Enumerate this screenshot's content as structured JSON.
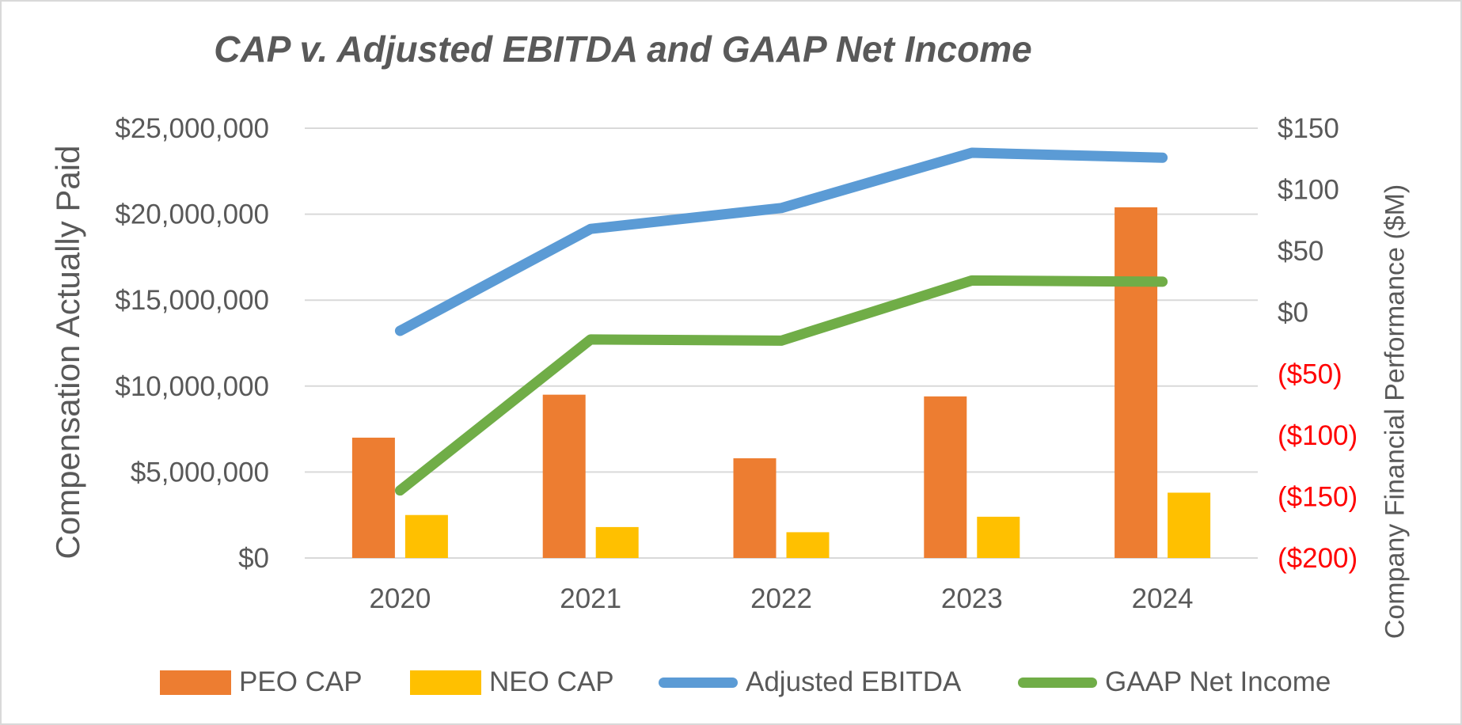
{
  "title": "CAP v. Adjusted EBITDA and GAAP Net Income",
  "left_axis": {
    "title": "Compensation Actually Paid",
    "tick_labels": [
      "$25,000,000",
      "$20,000,000",
      "$15,000,000",
      "$10,000,000",
      "$5,000,000",
      "$0"
    ],
    "tick_values": [
      25000000,
      20000000,
      15000000,
      10000000,
      5000000,
      0
    ],
    "min": 0,
    "max": 25000000,
    "label_color": "#595959"
  },
  "right_axis": {
    "title": "Company Financial Performance ($M)",
    "tick_labels": [
      "$150",
      "$100",
      "$50",
      "$0",
      "($50)",
      "($100)",
      "($150)",
      "($200)"
    ],
    "tick_values": [
      150,
      100,
      50,
      0,
      -50,
      -100,
      -150,
      -200
    ],
    "min": -200,
    "max": 150,
    "label_color": "#595959",
    "negative_label_color": "#ff0000"
  },
  "x_axis": {
    "categories": [
      "2020",
      "2021",
      "2022",
      "2023",
      "2024"
    ],
    "label_color": "#595959"
  },
  "gridline_color": "#d9d9d9",
  "chart_data": {
    "type": "combo",
    "categories": [
      "2020",
      "2021",
      "2022",
      "2023",
      "2024"
    ],
    "series": [
      {
        "name": "PEO CAP",
        "type": "bar",
        "axis": "left",
        "color": "#ED7D31",
        "values": [
          7000000,
          9500000,
          5800000,
          9400000,
          20400000
        ]
      },
      {
        "name": "NEO CAP",
        "type": "bar",
        "axis": "left",
        "color": "#FFC000",
        "values": [
          2500000,
          1800000,
          1500000,
          2400000,
          3800000
        ]
      },
      {
        "name": "Adjusted EBITDA",
        "type": "line",
        "axis": "right",
        "color": "#5B9BD5",
        "values": [
          -15,
          68,
          85,
          130,
          126
        ]
      },
      {
        "name": "GAAP Net Income",
        "type": "line",
        "axis": "right",
        "color": "#70AD47",
        "values": [
          -145,
          -22,
          -23,
          26,
          25
        ]
      }
    ],
    "title": "CAP v. Adjusted EBITDA and GAAP Net Income",
    "left_ylabel": "Compensation Actually Paid",
    "right_ylabel": "Company Financial Performance ($M)",
    "left_ylim": [
      0,
      25000000
    ],
    "right_ylim": [
      -200,
      150
    ],
    "grid": true,
    "legend_position": "bottom"
  }
}
